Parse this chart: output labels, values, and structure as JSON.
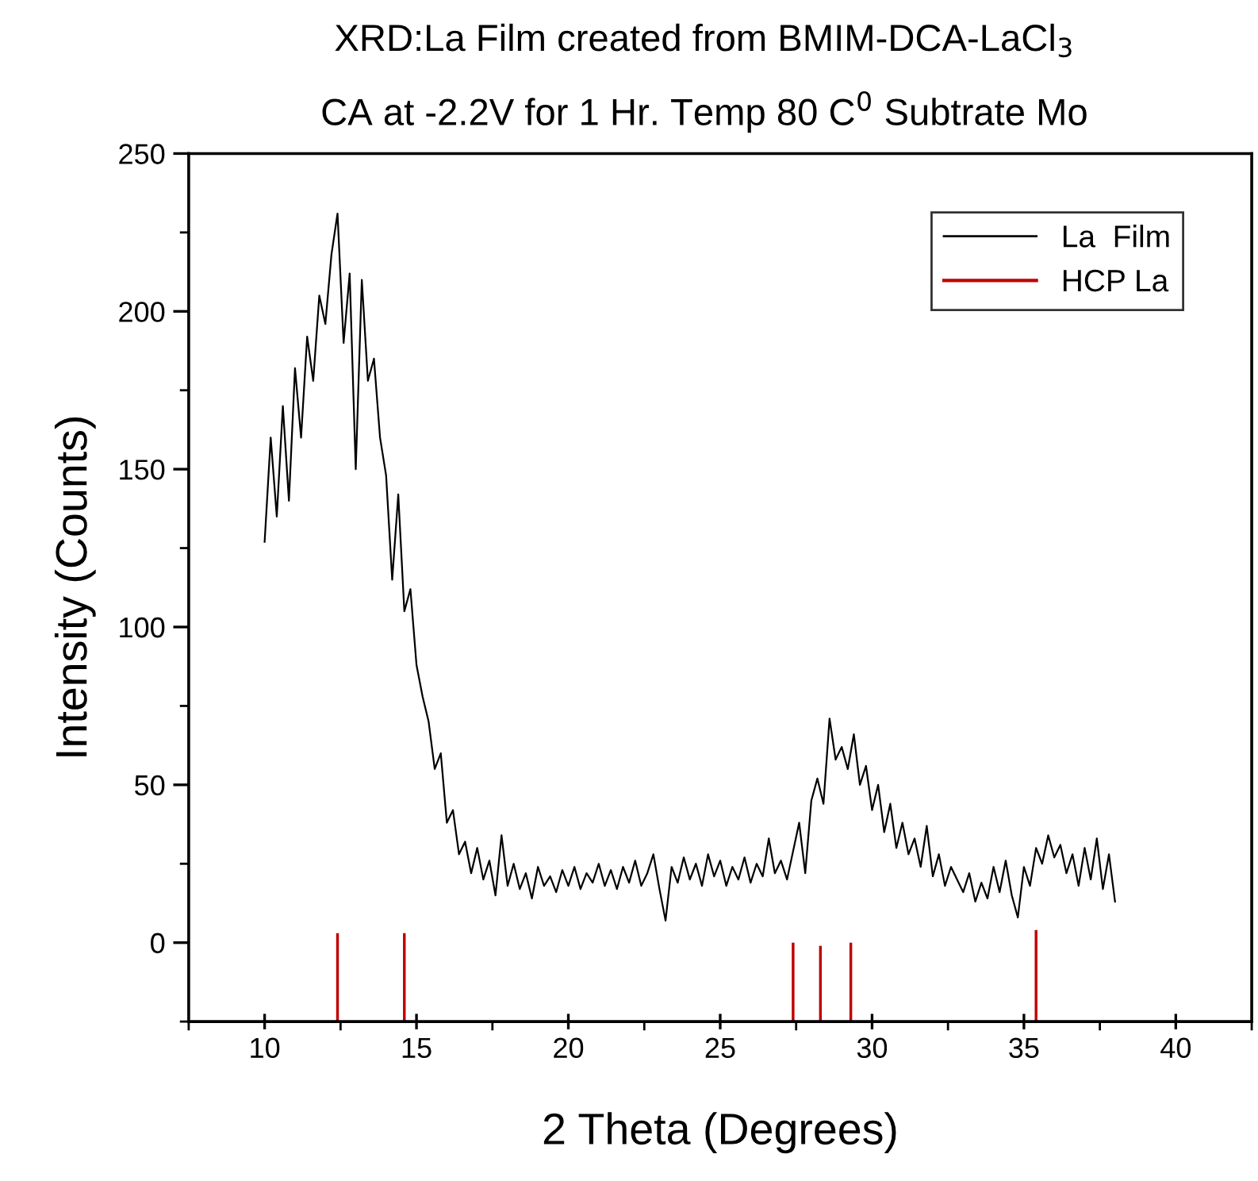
{
  "chart_data": {
    "type": "line",
    "title": "XRD:La Film created from BMIM-DCA-LaCl$_{3}$",
    "subtitle": "CA at -2.2V for 1 Hr. Temp 80 C$^{0}$ Subtrate Mo",
    "xlabel": "2 Theta (Degrees)",
    "ylabel": "Intensity (Counts)",
    "series": [
      {
        "name": "La  Film",
        "color": "#000000",
        "x": [
          10.0,
          10.2,
          10.4,
          10.6,
          10.8,
          11.0,
          11.2,
          11.4,
          11.6,
          11.8,
          12.0,
          12.2,
          12.4,
          12.6,
          12.8,
          13.0,
          13.2,
          13.4,
          13.6,
          13.8,
          14.0,
          14.2,
          14.4,
          14.6,
          14.8,
          15.0,
          15.2,
          15.4,
          15.6,
          15.8,
          16.0,
          16.2,
          16.4,
          16.6,
          16.8,
          17.0,
          17.2,
          17.4,
          17.6,
          17.8,
          18.0,
          18.2,
          18.4,
          18.6,
          18.8,
          19.0,
          19.2,
          19.4,
          19.6,
          19.8,
          20.0,
          20.2,
          20.4,
          20.6,
          20.8,
          21.0,
          21.2,
          21.4,
          21.6,
          21.8,
          22.0,
          22.2,
          22.4,
          22.6,
          22.8,
          23.0,
          23.2,
          23.4,
          23.6,
          23.8,
          24.0,
          24.2,
          24.4,
          24.6,
          24.8,
          25.0,
          25.2,
          25.4,
          25.6,
          25.8,
          26.0,
          26.2,
          26.4,
          26.6,
          26.8,
          27.0,
          27.2,
          27.4,
          27.6,
          27.8,
          28.0,
          28.2,
          28.4,
          28.6,
          28.8,
          29.0,
          29.2,
          29.4,
          29.6,
          29.8,
          30.0,
          30.2,
          30.4,
          30.6,
          30.8,
          31.0,
          31.2,
          31.4,
          31.6,
          31.8,
          32.0,
          32.2,
          32.4,
          32.6,
          32.8,
          33.0,
          33.2,
          33.4,
          33.6,
          33.8,
          34.0,
          34.2,
          34.4,
          34.6,
          34.8,
          35.0,
          35.2,
          35.4,
          35.6,
          35.8,
          36.0,
          36.2,
          36.4,
          36.6,
          36.8,
          37.0,
          37.2,
          37.4,
          37.6,
          37.8,
          38.0
        ],
        "values": [
          127,
          160,
          135,
          170,
          140,
          182,
          160,
          192,
          178,
          205,
          196,
          218,
          231,
          190,
          212,
          150,
          210,
          178,
          185,
          160,
          148,
          115,
          142,
          105,
          112,
          88,
          78,
          70,
          55,
          60,
          38,
          42,
          28,
          32,
          22,
          30,
          20,
          26,
          15,
          34,
          18,
          25,
          17,
          22,
          14,
          24,
          18,
          21,
          16,
          23,
          18,
          24,
          17,
          22,
          19,
          25,
          18,
          23,
          17,
          24,
          19,
          26,
          18,
          22,
          28,
          17,
          7,
          24,
          19,
          27,
          20,
          25,
          18,
          28,
          21,
          26,
          18,
          24,
          20,
          27,
          19,
          25,
          21,
          33,
          22,
          26,
          20,
          29,
          38,
          22,
          45,
          52,
          44,
          71,
          58,
          62,
          55,
          66,
          50,
          56,
          42,
          50,
          35,
          44,
          30,
          38,
          28,
          33,
          24,
          37,
          21,
          28,
          18,
          24,
          20,
          16,
          22,
          13,
          19,
          14,
          24,
          16,
          26,
          15,
          8,
          24,
          18,
          30,
          25,
          34,
          27,
          31,
          22,
          28,
          18,
          30,
          20,
          33,
          17,
          28,
          13
        ]
      },
      {
        "name": "HCP La",
        "type": "bar",
        "color": "#c00000",
        "x": [
          12.4,
          14.6,
          27.4,
          28.3,
          29.3,
          35.4
        ],
        "base": [
          -25,
          -25,
          -25,
          -25,
          -25,
          -25
        ],
        "values": [
          28,
          28,
          25,
          24,
          25,
          29
        ]
      }
    ],
    "xlim": [
      7.5,
      42.5
    ],
    "xticks": [
      {
        "value": 7.5,
        "label": null
      },
      10,
      {
        "value": 12.5,
        "label": null
      },
      15,
      {
        "value": 17.5,
        "label": null
      },
      20,
      {
        "value": 22.5,
        "label": null
      },
      25,
      {
        "value": 27.5,
        "label": null
      },
      30,
      {
        "value": 32.5,
        "label": null
      },
      35,
      {
        "value": 37.5,
        "label": null
      },
      40,
      {
        "value": 42.5,
        "label": null
      }
    ],
    "ylim": [
      -25,
      250
    ],
    "yticks": [
      {
        "value": -25,
        "label": null
      },
      0,
      {
        "value": 25,
        "label": null
      },
      50,
      {
        "value": 75,
        "label": null
      },
      100,
      {
        "value": 125,
        "label": null
      },
      150,
      {
        "value": 175,
        "label": null
      },
      200,
      {
        "value": 225,
        "label": null
      },
      250
    ],
    "grid": false,
    "legend": "top right"
  }
}
